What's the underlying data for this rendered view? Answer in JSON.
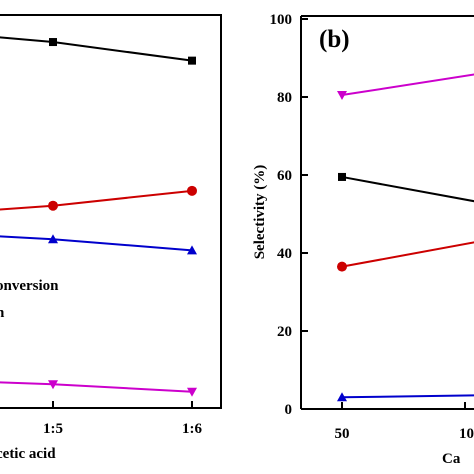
{
  "chart_data": [
    {
      "panel": "left",
      "type": "line",
      "xlabel": "cetic acid",
      "x_ticks": [
        "1:5",
        "1:6"
      ],
      "legend_fragments": [
        "onversion",
        "n"
      ],
      "series": [
        {
          "color": "#000000",
          "marker": "square",
          "values": [
            93,
            88
          ]
        },
        {
          "color": "#cc0000",
          "marker": "circle",
          "values": [
            49,
            53
          ]
        },
        {
          "color": "#0000cc",
          "marker": "triangle-up",
          "values": [
            40,
            37
          ]
        },
        {
          "color": "#cc00cc",
          "marker": "triangle-down",
          "values": [
            1,
            -1
          ]
        }
      ]
    },
    {
      "panel_label": "(b)",
      "type": "line",
      "ylabel": "Selectivity (%)",
      "xlabel": "Ca",
      "ylim": [
        0,
        100
      ],
      "y_ticks": [
        "0",
        "20",
        "40",
        "60",
        "80",
        "100"
      ],
      "x_ticks": [
        "50",
        "10"
      ],
      "series": [
        {
          "color": "#cc00cc",
          "marker": "triangle-down",
          "values": [
            80.5,
            86
          ]
        },
        {
          "color": "#000000",
          "marker": "square",
          "values": [
            59.5,
            53
          ]
        },
        {
          "color": "#cc0000",
          "marker": "circle",
          "values": [
            36.5,
            43
          ]
        },
        {
          "color": "#0000cc",
          "marker": "triangle-up",
          "values": [
            3,
            3.5
          ]
        }
      ]
    }
  ]
}
